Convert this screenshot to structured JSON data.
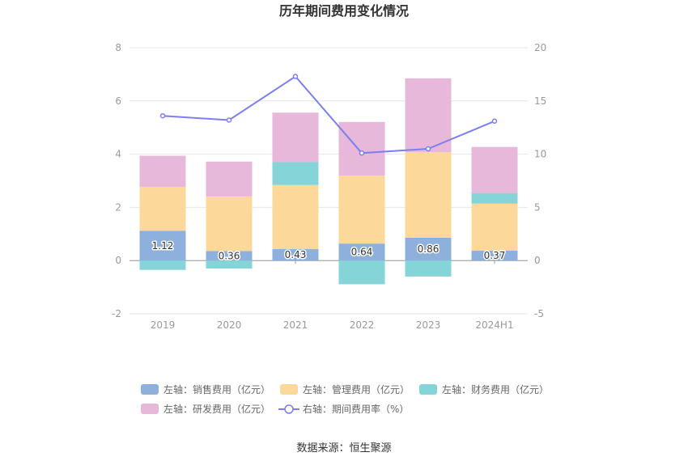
{
  "title": "历年期间费用变化情况",
  "source": "数据来源：恒生聚源",
  "chart_data": {
    "type": "bar",
    "categories": [
      "2019",
      "2020",
      "2021",
      "2022",
      "2023",
      "2024H1"
    ],
    "y_left": {
      "min": -2,
      "max": 8,
      "ticks": [
        "-2",
        "0",
        "2",
        "4",
        "6",
        "8"
      ]
    },
    "y_right": {
      "min": -5,
      "max": 20,
      "ticks": [
        "-5",
        "0",
        "5",
        "10",
        "15",
        "20"
      ]
    },
    "series": [
      {
        "name": "左轴：销售费用（亿元）",
        "type": "bar",
        "axis": "left",
        "color": "#8eb0dc",
        "values": [
          1.12,
          0.36,
          0.43,
          0.64,
          0.86,
          0.37
        ],
        "labels": [
          "1.12",
          "0.36",
          "0.43",
          "0.64",
          "0.86",
          "0.37"
        ]
      },
      {
        "name": "左轴：管理费用（亿元）",
        "type": "bar",
        "axis": "left",
        "color": "#fcd99b",
        "values": [
          1.65,
          2.05,
          2.41,
          2.55,
          3.21,
          1.77
        ]
      },
      {
        "name": "左轴：财务费用（亿元）",
        "type": "bar",
        "axis": "left",
        "color": "#85d4d8",
        "values": [
          -0.35,
          -0.3,
          0.86,
          -0.89,
          -0.6,
          0.4
        ]
      },
      {
        "name": "左轴：研发费用（亿元）",
        "type": "bar",
        "axis": "left",
        "color": "#e7b8d9",
        "values": [
          1.17,
          1.31,
          1.86,
          2.02,
          2.78,
          1.73
        ]
      },
      {
        "name": "右轴：期间费用率（%）",
        "type": "line",
        "axis": "right",
        "color": "#7b7ff0",
        "values": [
          13.6,
          13.2,
          17.3,
          10.1,
          10.5,
          13.1
        ]
      }
    ],
    "grid": true,
    "legend_position": "bottom"
  }
}
